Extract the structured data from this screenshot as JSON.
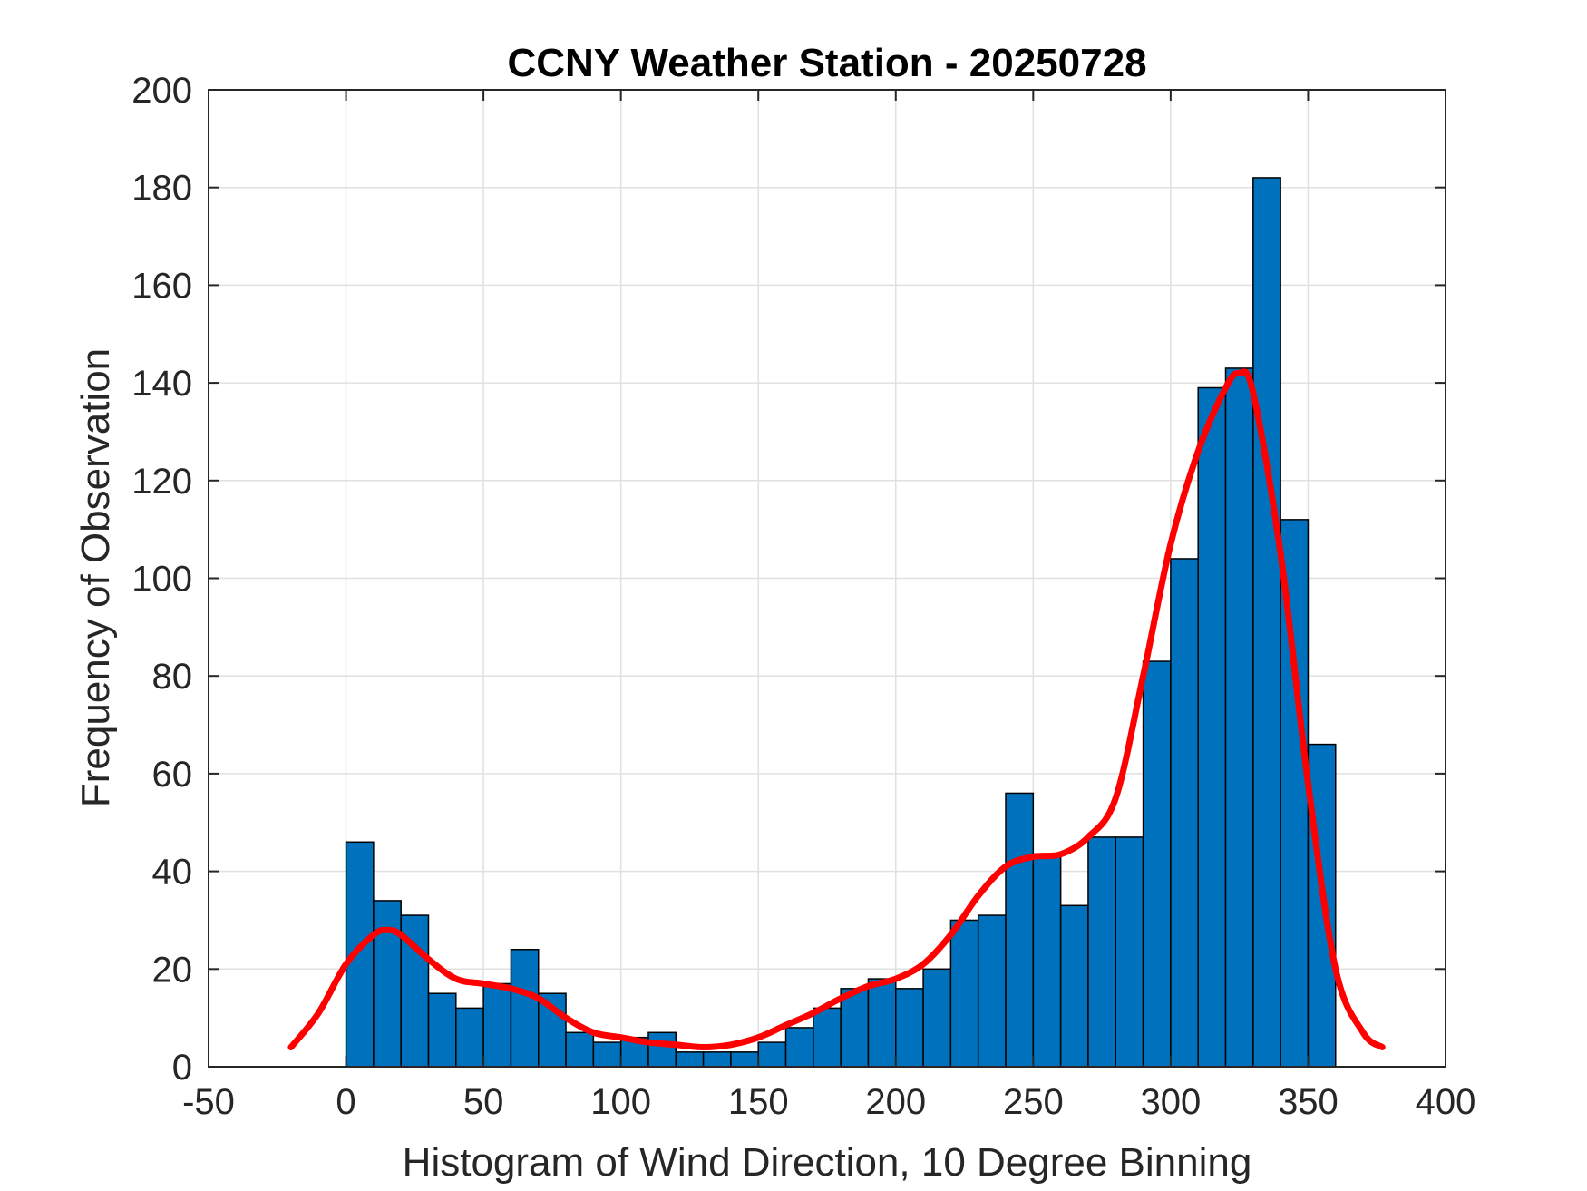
{
  "chart_data": {
    "type": "bar",
    "title": "CCNY Weather Station - 20250728",
    "xlabel": "Histogram of Wind Direction, 10 Degree Binning",
    "ylabel": "Frequency of Observation",
    "xlim": [
      -50,
      400
    ],
    "ylim": [
      0,
      200
    ],
    "xticks": [
      -50,
      0,
      50,
      100,
      150,
      200,
      250,
      300,
      350,
      400
    ],
    "yticks": [
      0,
      20,
      40,
      60,
      80,
      100,
      120,
      140,
      160,
      180,
      200
    ],
    "grid": true,
    "bin_width": 10,
    "bin_edges_start": [
      0,
      10,
      20,
      30,
      40,
      50,
      60,
      70,
      80,
      90,
      100,
      110,
      120,
      130,
      140,
      150,
      160,
      170,
      180,
      190,
      200,
      210,
      220,
      230,
      240,
      250,
      260,
      270,
      280,
      290,
      300,
      310,
      320,
      330,
      340,
      350
    ],
    "values": [
      46,
      34,
      31,
      15,
      12,
      17,
      24,
      15,
      7,
      5,
      6,
      7,
      3,
      3,
      3,
      5,
      8,
      12,
      16,
      18,
      16,
      20,
      30,
      31,
      56,
      43,
      33,
      47,
      47,
      83,
      104,
      139,
      143,
      182,
      112,
      66
    ],
    "bar_color": "#0072BD",
    "series": [
      {
        "type": "line",
        "color": "#FF0000",
        "x": [
          -20,
          -10,
          0,
          10,
          15,
          20,
          30,
          40,
          50,
          60,
          70,
          80,
          90,
          100,
          110,
          120,
          130,
          140,
          150,
          160,
          170,
          180,
          190,
          200,
          210,
          220,
          230,
          240,
          250,
          260,
          270,
          280,
          290,
          300,
          310,
          320,
          325,
          330,
          340,
          350,
          360,
          370,
          377
        ],
        "y": [
          4,
          11,
          21,
          27,
          28,
          27,
          22,
          18,
          17,
          16,
          14,
          10,
          7,
          6,
          5,
          4.5,
          4,
          4.5,
          6,
          8.5,
          11,
          14,
          16.5,
          18,
          21,
          27,
          35,
          41,
          43,
          43.5,
          47,
          55,
          80,
          107,
          126,
          139,
          142,
          138,
          105,
          58,
          20,
          7,
          4
        ]
      }
    ]
  }
}
